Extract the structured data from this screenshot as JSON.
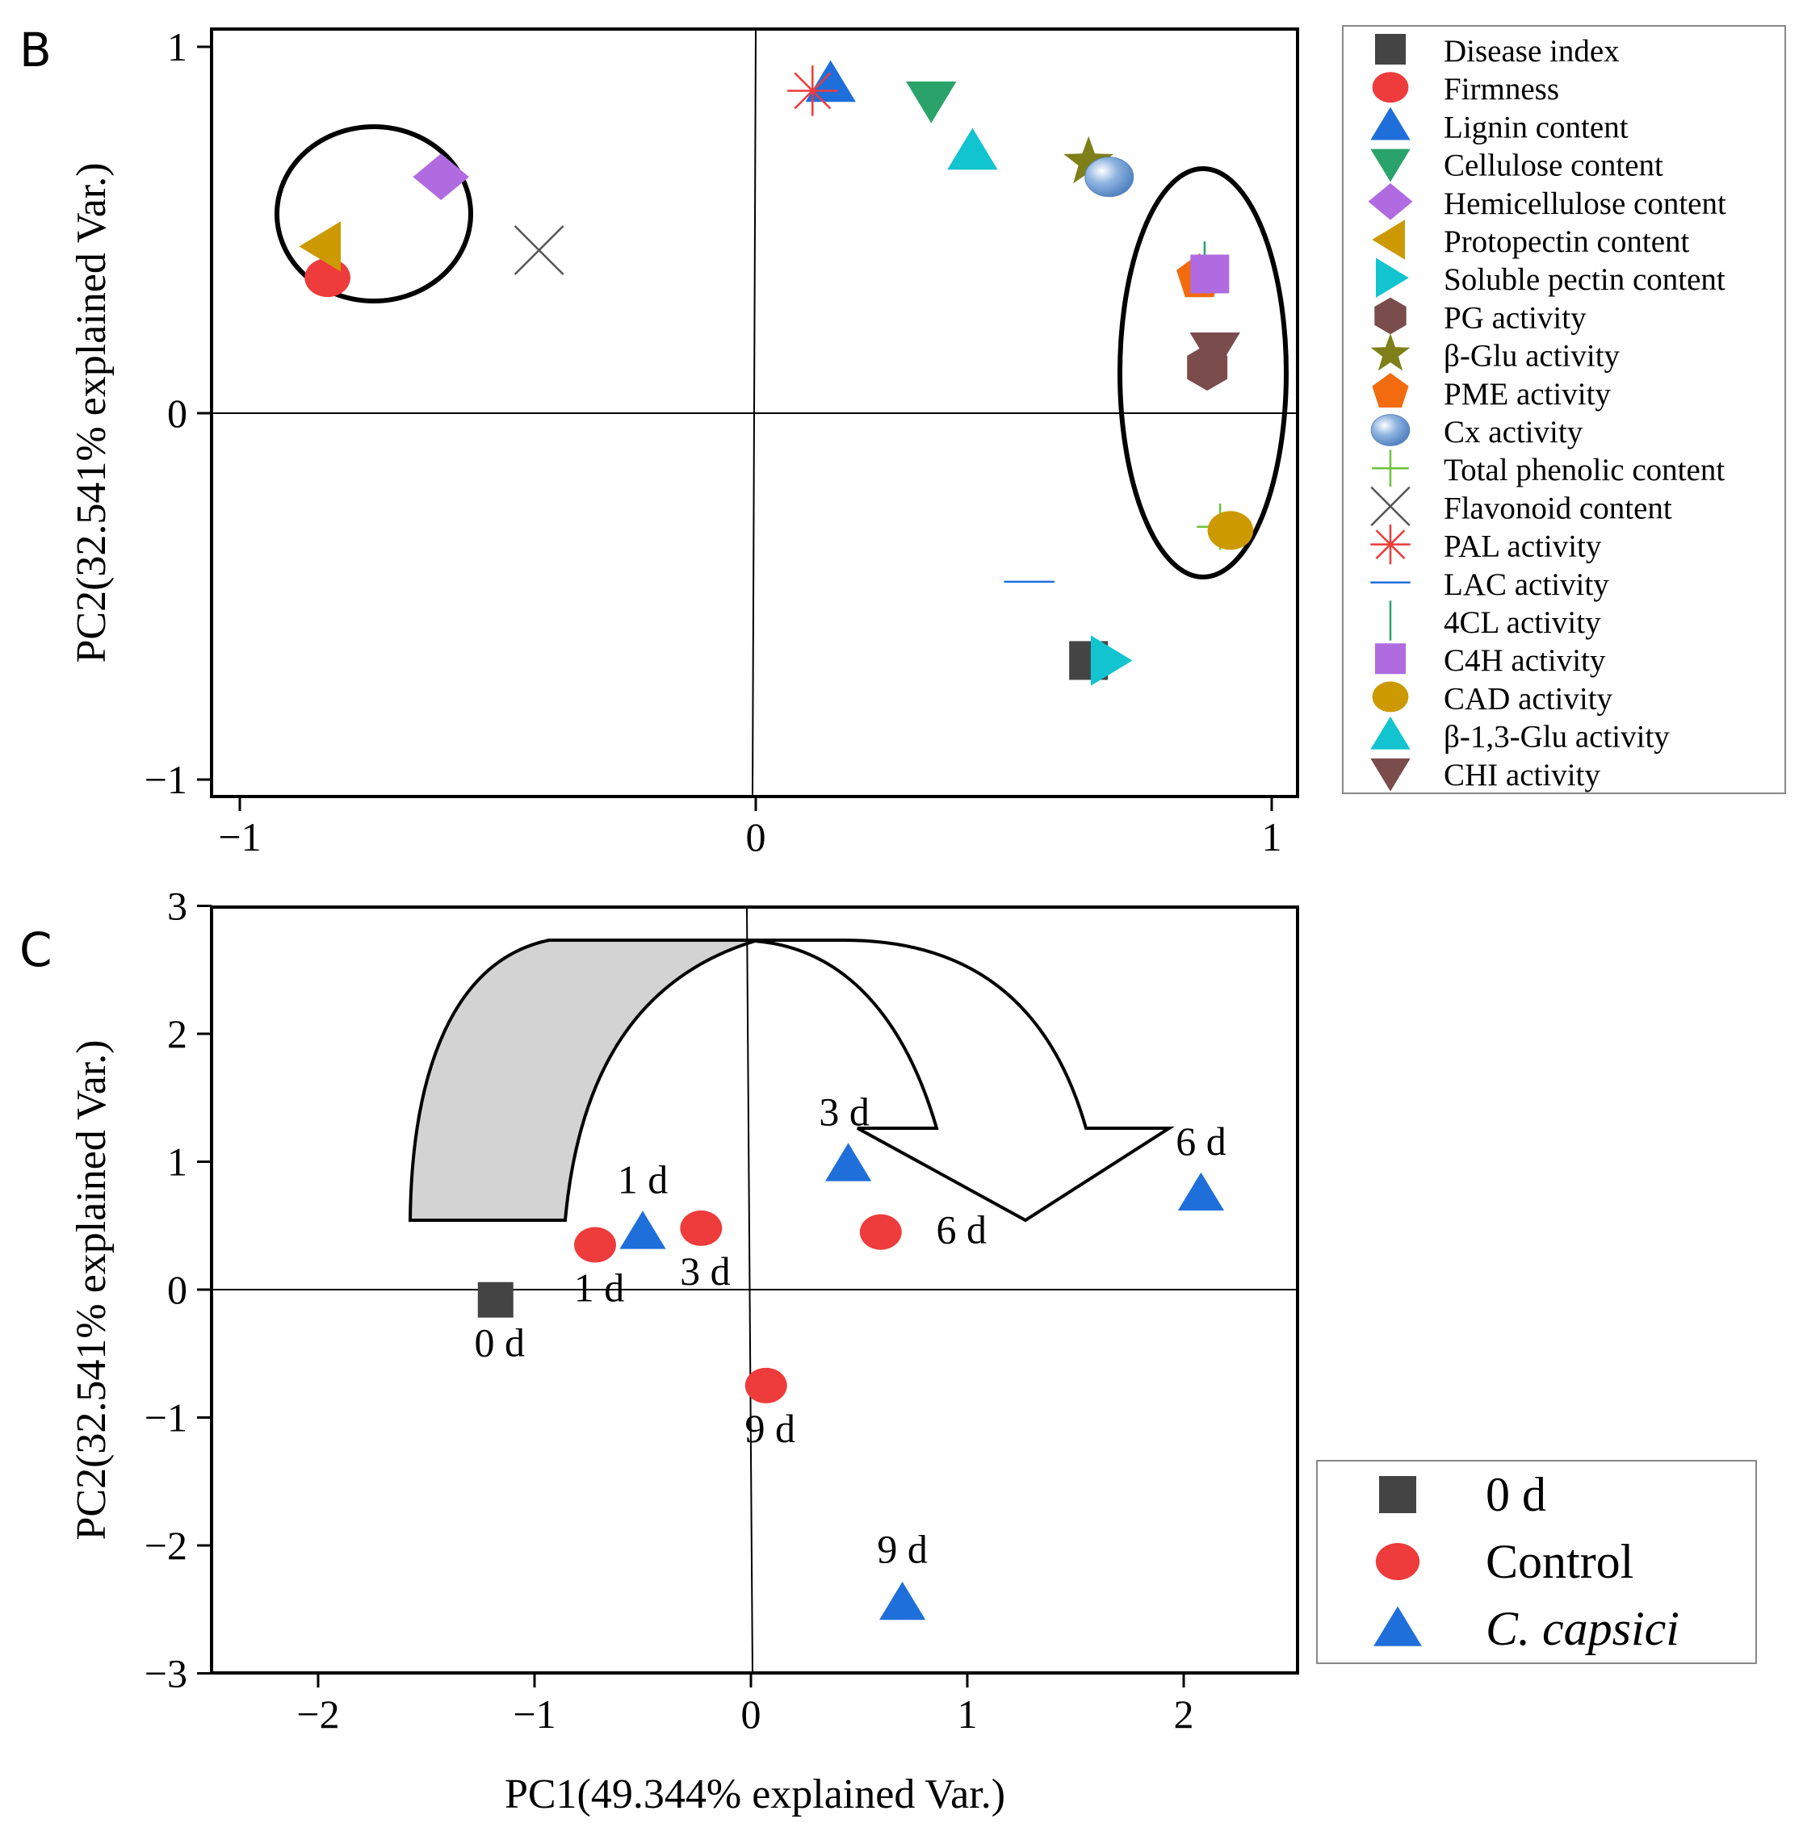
{
  "colors": {
    "disease": "#444444",
    "firmness": "#ee3b3b",
    "lignin": "#1f6fdb",
    "cellulose": "#2aa36b",
    "hemicellulose": "#b06be0",
    "protopectin": "#cc9a00",
    "soluble_pectin": "#12c4cf",
    "pg": "#7a4c4c",
    "bglu": "#7f7f1a",
    "pme": "#f36b0f",
    "cx": "#6f9bd1",
    "phenolic": "#6cc23a",
    "flavonoid": "#555555",
    "pal": "#ee3b3b",
    "lac": "#1f6fdb",
    "fourcl": "#2aa36b",
    "c4h": "#b06be0",
    "cad": "#cc9a00",
    "b13glu": "#12c4cf",
    "chi": "#7a4c4c",
    "black": "#000000",
    "arrow_fill": "#d3d3d3"
  },
  "chart_data": [
    {
      "panel": "B",
      "type": "scatter",
      "title": "",
      "xlabel": "",
      "ylabel": "PC2(32.541% explained Var.)",
      "xlim": [
        -1.05,
        1.05
      ],
      "ylim": [
        -1.05,
        1.05
      ],
      "xticks": [
        {
          "v": -1,
          "label": "−1"
        },
        {
          "v": 0,
          "label": "0"
        },
        {
          "v": 1,
          "label": "1"
        }
      ],
      "yticks": [
        {
          "v": -1,
          "label": "−1"
        },
        {
          "v": 0,
          "label": "0"
        },
        {
          "v": 1,
          "label": "1"
        }
      ],
      "legend_position": "outside-right",
      "series": [
        {
          "name": "Disease index",
          "marker": "square",
          "color_key": "disease",
          "x": 0.645,
          "y": -0.675
        },
        {
          "name": "Firmness",
          "marker": "circle",
          "color_key": "firmness",
          "x": -0.83,
          "y": 0.37
        },
        {
          "name": "Lignin content",
          "marker": "triangle-up",
          "color_key": "lignin",
          "x": 0.145,
          "y": 0.9
        },
        {
          "name": "Cellulose content",
          "marker": "triangle-down",
          "color_key": "cellulose",
          "x": 0.34,
          "y": 0.855
        },
        {
          "name": "Hemicellulose content",
          "marker": "diamond",
          "color_key": "hemicellulose",
          "x": -0.61,
          "y": 0.645
        },
        {
          "name": "Protopectin content",
          "marker": "triangle-left",
          "color_key": "protopectin",
          "x": -0.84,
          "y": 0.455
        },
        {
          "name": "Soluble pectin content",
          "marker": "triangle-right",
          "color_key": "soluble_pectin",
          "x": 0.685,
          "y": -0.675
        },
        {
          "name": "PG activity",
          "marker": "hexagon",
          "color_key": "pg",
          "x": 0.875,
          "y": 0.125
        },
        {
          "name": "β-Glu activity",
          "marker": "star",
          "color_key": "bglu",
          "x": 0.645,
          "y": 0.685
        },
        {
          "name": "PME activity",
          "marker": "pentagon",
          "color_key": "pme",
          "x": 0.86,
          "y": 0.37
        },
        {
          "name": "Cx activity",
          "marker": "sphere",
          "color_key": "cx",
          "x": 0.685,
          "y": 0.645
        },
        {
          "name": "Total phenolic content",
          "marker": "plus",
          "color_key": "phenolic",
          "x": 0.9,
          "y": -0.31
        },
        {
          "name": "Flavonoid content",
          "marker": "x",
          "color_key": "flavonoid",
          "x": -0.42,
          "y": 0.445
        },
        {
          "name": "PAL activity",
          "marker": "asterisk",
          "color_key": "pal",
          "x": 0.11,
          "y": 0.88
        },
        {
          "name": "LAC activity",
          "marker": "hline",
          "color_key": "lac",
          "x": 0.53,
          "y": -0.46
        },
        {
          "name": "4CL activity",
          "marker": "vline",
          "color_key": "fourcl",
          "x": 0.87,
          "y": 0.4
        },
        {
          "name": "C4H activity",
          "marker": "square",
          "color_key": "c4h",
          "x": 0.88,
          "y": 0.38
        },
        {
          "name": "CAD activity",
          "marker": "circle",
          "color_key": "cad",
          "x": 0.92,
          "y": -0.32
        },
        {
          "name": "β-1,3-Glu activity",
          "marker": "triangle-up",
          "color_key": "b13glu",
          "x": 0.42,
          "y": 0.715
        },
        {
          "name": "CHI activity",
          "marker": "triangle-down",
          "color_key": "chi",
          "x": 0.89,
          "y": 0.17
        }
      ]
    },
    {
      "panel": "C",
      "type": "scatter",
      "title": "",
      "xlabel": "PC1(49.344% explained Var.)",
      "ylabel": "PC2(32.541% explained Var.)",
      "xlim": [
        -2.5,
        2.5
      ],
      "ylim": [
        -3,
        3
      ],
      "xticks": [
        {
          "v": -2,
          "label": "−2"
        },
        {
          "v": -1,
          "label": "−1"
        },
        {
          "v": 0,
          "label": "0"
        },
        {
          "v": 1,
          "label": "1"
        },
        {
          "v": 2,
          "label": "2"
        }
      ],
      "yticks": [
        {
          "v": -3,
          "label": "−3"
        },
        {
          "v": -2,
          "label": "−2"
        },
        {
          "v": -1,
          "label": "−1"
        },
        {
          "v": 0,
          "label": "0"
        },
        {
          "v": 1,
          "label": "1"
        },
        {
          "v": 2,
          "label": "2"
        },
        {
          "v": 3,
          "label": "3"
        }
      ],
      "legend_position": "lower-right-outside",
      "series": [
        {
          "name": "0 d",
          "marker": "square",
          "color_key": "disease",
          "style": "normal",
          "points": [
            {
              "x": -1.18,
              "y": -0.08,
              "label": "0 d"
            }
          ]
        },
        {
          "name": "Control",
          "marker": "circle",
          "color_key": "firmness",
          "style": "normal",
          "points": [
            {
              "x": -0.72,
              "y": 0.35,
              "label": "1 d"
            },
            {
              "x": -0.23,
              "y": 0.48,
              "label": "3 d"
            },
            {
              "x": 0.6,
              "y": 0.45,
              "label": "6 d"
            },
            {
              "x": 0.07,
              "y": -0.75,
              "label": "9 d"
            }
          ]
        },
        {
          "name": "C. capsici",
          "marker": "triangle-up",
          "color_key": "lignin",
          "style": "italic",
          "points": [
            {
              "x": -0.5,
              "y": 0.45,
              "label": "1 d"
            },
            {
              "x": 0.45,
              "y": 0.98,
              "label": "3 d"
            },
            {
              "x": 2.08,
              "y": 0.75,
              "label": "6 d"
            },
            {
              "x": 0.7,
              "y": -2.45,
              "label": "9 d"
            }
          ]
        }
      ]
    }
  ],
  "panels": {
    "b_label": "B",
    "c_label": "C"
  }
}
